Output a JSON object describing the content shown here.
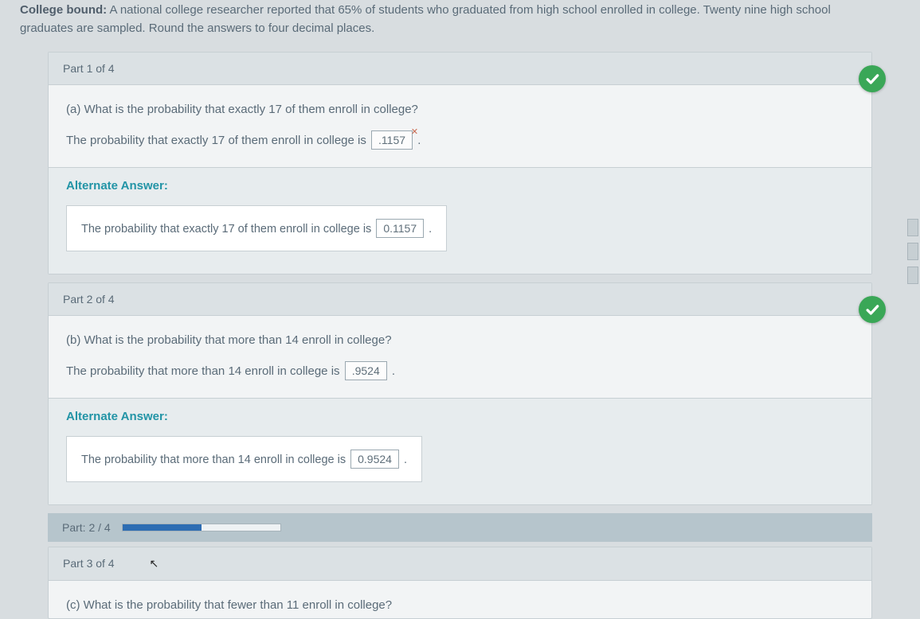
{
  "header": {
    "lead_bold": "College bound:",
    "text": " A national college researcher reported that 65% of students who graduated from high school enrolled in college. Twenty nine high school graduates are sampled. Round the answers to four decimal places."
  },
  "part1": {
    "header": "Part 1 of 4",
    "question": "(a) What is the probability that exactly 17 of them enroll in college?",
    "answer_label_before": "The probability that exactly 17 of them enroll in college is ",
    "answer_value": ".1157",
    "answer_label_after": ".",
    "alt_header": "Alternate Answer:",
    "alt_text_before": "The probability that exactly 17 of them enroll in college is ",
    "alt_value": "0.1157",
    "alt_text_after": "."
  },
  "part2": {
    "header": "Part 2 of 4",
    "question": "(b) What is the probability that more than 14 enroll in college?",
    "answer_label_before": "The probability that more than 14 enroll in college is ",
    "answer_value": ".9524",
    "answer_label_after": ".",
    "alt_header": "Alternate Answer:",
    "alt_text_before": "The probability that more than 14 enroll in college is ",
    "alt_value": "0.9524",
    "alt_text_after": "."
  },
  "progress": {
    "label": "Part: 2 / 4",
    "percent": 50
  },
  "part3": {
    "header": "Part 3 of 4",
    "question": "(c) What is the probability that fewer than 11 enroll in college?"
  },
  "colors": {
    "page_bg": "#d8dde0",
    "panel_bg": "#f2f4f5",
    "panel_header_bg": "#dbe1e4",
    "alt_bg": "#e7ecee",
    "border": "#c7cfd3",
    "text": "#5a6b78",
    "accent_teal": "#2294a6",
    "check_green": "#3aa757",
    "progress_blue": "#2d6db3",
    "progress_row_bg": "#b6c5cc"
  }
}
